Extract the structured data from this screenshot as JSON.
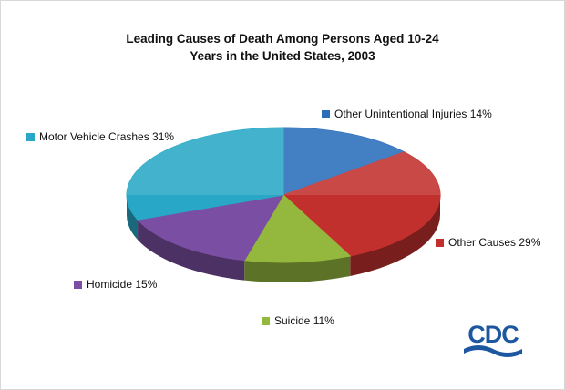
{
  "title": {
    "line1": "Leading Causes of Death Among Persons Aged 10-24",
    "line2": "Years in the United States, 2003"
  },
  "chart_data": {
    "type": "pie",
    "style": "3d",
    "title": "Leading Causes of Death Among Persons Aged 10-24 Years in the United States, 2003",
    "start_angle_deg": 0,
    "direction": "clockwise",
    "legend_position": "around-slices",
    "slices": [
      {
        "label": "Other Unintentional Injuries",
        "value": 14,
        "color": "#2a6ebb",
        "legend_text": "Other Unintentional Injuries 14%"
      },
      {
        "label": "Other Causes",
        "value": 29,
        "color": "#c2302e",
        "legend_text": "Other Causes 29%"
      },
      {
        "label": "Suicide",
        "value": 11,
        "color": "#94b83d",
        "legend_text": "Suicide 11%"
      },
      {
        "label": "Homicide",
        "value": 15,
        "color": "#7a4fa3",
        "legend_text": "Homicide 15%"
      },
      {
        "label": "Motor Vehicle Crashes",
        "value": 31,
        "color": "#28a8c6",
        "legend_text": "Motor Vehicle Crashes 31%"
      }
    ]
  },
  "logo": {
    "text": "CDC",
    "color": "#1c57a0"
  }
}
